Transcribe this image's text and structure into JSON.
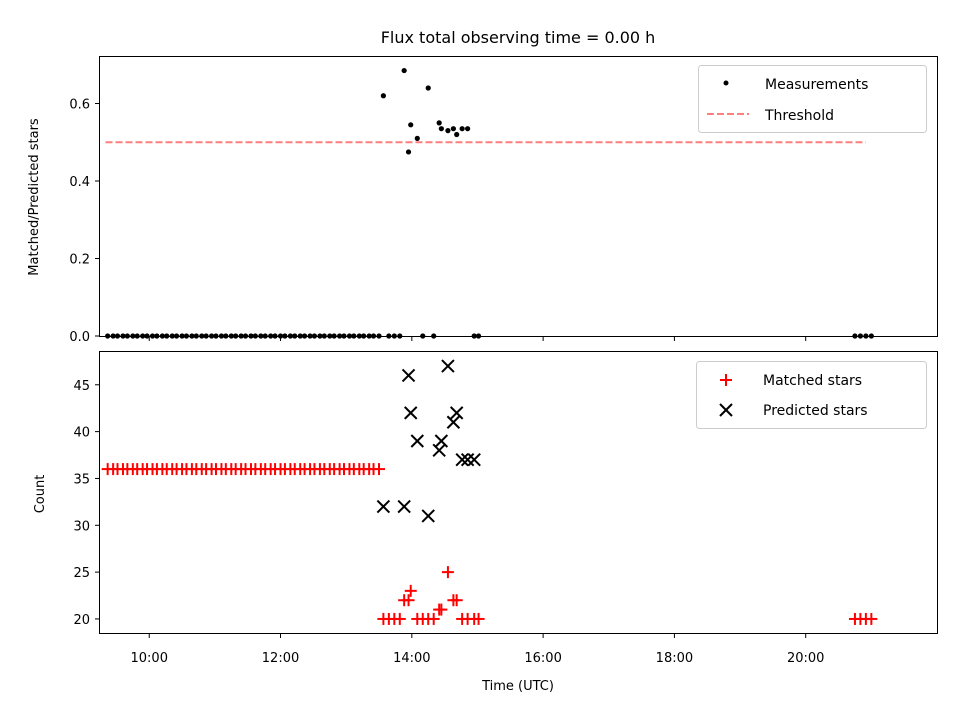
{
  "title": "Flux total observing time = 0.00 h",
  "colors": {
    "measurement": "#000000",
    "threshold": "#ff7f7f",
    "matched": "#ff0000",
    "predicted": "#000000"
  },
  "chart_data": [
    {
      "type": "scatter",
      "title": "Flux total observing time = 0.00 h",
      "xlabel": "",
      "ylabel": "Matched/Predicted stars",
      "xlim": [
        "09:15",
        "22:00"
      ],
      "ylim": [
        0,
        0.72
      ],
      "yticks": [
        0.0,
        0.2,
        0.4,
        0.6
      ],
      "yticklabels": [
        "0.0",
        "0.2",
        "0.4",
        "0.6"
      ],
      "grid": false,
      "legend": {
        "position": "top-right",
        "entries": [
          "Measurements",
          "Threshold"
        ]
      },
      "series": [
        {
          "name": "Measurements",
          "marker": "dot",
          "x": [
            "09:22",
            "09:27",
            "09:31",
            "09:36",
            "09:40",
            "09:45",
            "09:49",
            "09:54",
            "09:58",
            "10:03",
            "10:07",
            "10:12",
            "10:16",
            "10:21",
            "10:25",
            "10:30",
            "10:34",
            "10:39",
            "10:43",
            "10:48",
            "10:52",
            "10:57",
            "11:01",
            "11:06",
            "11:10",
            "11:15",
            "11:19",
            "11:24",
            "11:28",
            "11:33",
            "11:37",
            "11:42",
            "11:46",
            "11:51",
            "11:55",
            "12:00",
            "12:04",
            "12:09",
            "12:13",
            "12:18",
            "12:22",
            "12:27",
            "12:31",
            "12:36",
            "12:40",
            "12:45",
            "12:49",
            "12:54",
            "12:58",
            "13:03",
            "13:07",
            "13:12",
            "13:16",
            "13:21",
            "13:25",
            "13:30",
            "13:34",
            "13:39",
            "13:44",
            "13:49",
            "13:53",
            "13:57",
            "13:59",
            "14:05",
            "14:10",
            "14:15",
            "14:20",
            "14:25",
            "14:27",
            "14:33",
            "14:38",
            "14:41",
            "14:46",
            "14:51",
            "14:57",
            "15:01",
            "20:45",
            "20:50",
            "20:55",
            "21:00"
          ],
          "y": [
            0,
            0,
            0,
            0,
            0,
            0,
            0,
            0,
            0,
            0,
            0,
            0,
            0,
            0,
            0,
            0,
            0,
            0,
            0,
            0,
            0,
            0,
            0,
            0,
            0,
            0,
            0,
            0,
            0,
            0,
            0,
            0,
            0,
            0,
            0,
            0,
            0,
            0,
            0,
            0,
            0,
            0,
            0,
            0,
            0,
            0,
            0,
            0,
            0,
            0,
            0,
            0,
            0,
            0,
            0,
            0,
            0.62,
            0,
            0,
            0,
            0.685,
            0.475,
            0.545,
            0.51,
            0,
            0.64,
            0,
            0.55,
            0.535,
            0.53,
            0.535,
            0.52,
            0.535,
            0.535,
            0,
            0,
            0,
            0,
            0,
            0
          ]
        },
        {
          "name": "Threshold",
          "style": "dashed",
          "x": [
            "09:20",
            "20:55"
          ],
          "y": [
            0.5,
            0.5
          ]
        }
      ]
    },
    {
      "type": "scatter",
      "xlabel": "Time (UTC)",
      "ylabel": "Count",
      "xlim": [
        "09:15",
        "22:00"
      ],
      "ylim": [
        18.5,
        48.5
      ],
      "xticks": [
        "10:00",
        "12:00",
        "14:00",
        "16:00",
        "18:00",
        "20:00"
      ],
      "yticks": [
        20,
        25,
        30,
        35,
        40,
        45
      ],
      "yticklabels": [
        "20",
        "25",
        "30",
        "35",
        "40",
        "45"
      ],
      "grid": false,
      "legend": {
        "position": "top-right",
        "entries": [
          "Matched stars",
          "Predicted stars"
        ]
      },
      "series": [
        {
          "name": "Matched stars",
          "marker": "plus",
          "x": [
            "09:22",
            "09:27",
            "09:31",
            "09:36",
            "09:40",
            "09:45",
            "09:49",
            "09:54",
            "09:58",
            "10:03",
            "10:07",
            "10:12",
            "10:16",
            "10:21",
            "10:25",
            "10:30",
            "10:34",
            "10:39",
            "10:43",
            "10:48",
            "10:52",
            "10:57",
            "11:01",
            "11:06",
            "11:10",
            "11:15",
            "11:19",
            "11:24",
            "11:28",
            "11:33",
            "11:37",
            "11:42",
            "11:46",
            "11:51",
            "11:55",
            "12:00",
            "12:04",
            "12:09",
            "12:13",
            "12:18",
            "12:22",
            "12:27",
            "12:31",
            "12:36",
            "12:40",
            "12:45",
            "12:49",
            "12:54",
            "12:58",
            "13:03",
            "13:07",
            "13:12",
            "13:16",
            "13:21",
            "13:25",
            "13:30",
            "13:34",
            "13:39",
            "13:44",
            "13:49",
            "13:53",
            "13:57",
            "13:59",
            "14:05",
            "14:10",
            "14:15",
            "14:20",
            "14:25",
            "14:27",
            "14:33",
            "14:38",
            "14:41",
            "14:46",
            "14:51",
            "14:57",
            "15:01",
            "20:45",
            "20:50",
            "20:55",
            "21:00"
          ],
          "y": [
            36,
            36,
            36,
            36,
            36,
            36,
            36,
            36,
            36,
            36,
            36,
            36,
            36,
            36,
            36,
            36,
            36,
            36,
            36,
            36,
            36,
            36,
            36,
            36,
            36,
            36,
            36,
            36,
            36,
            36,
            36,
            36,
            36,
            36,
            36,
            36,
            36,
            36,
            36,
            36,
            36,
            36,
            36,
            36,
            36,
            36,
            36,
            36,
            36,
            36,
            36,
            36,
            36,
            36,
            36,
            36,
            20,
            20,
            20,
            20,
            22,
            22,
            23,
            20,
            20,
            20,
            20,
            21,
            21,
            25,
            22,
            22,
            20,
            20,
            20,
            20,
            20,
            20,
            20,
            20
          ]
        },
        {
          "name": "Predicted stars",
          "marker": "x",
          "x": [
            "13:34",
            "13:53",
            "13:57",
            "13:59",
            "14:05",
            "14:15",
            "14:25",
            "14:27",
            "14:33",
            "14:38",
            "14:41",
            "14:46",
            "14:51",
            "14:57"
          ],
          "y": [
            32,
            32,
            46,
            42,
            39,
            31,
            38,
            39,
            47,
            41,
            42,
            37,
            37,
            37
          ]
        }
      ]
    }
  ]
}
